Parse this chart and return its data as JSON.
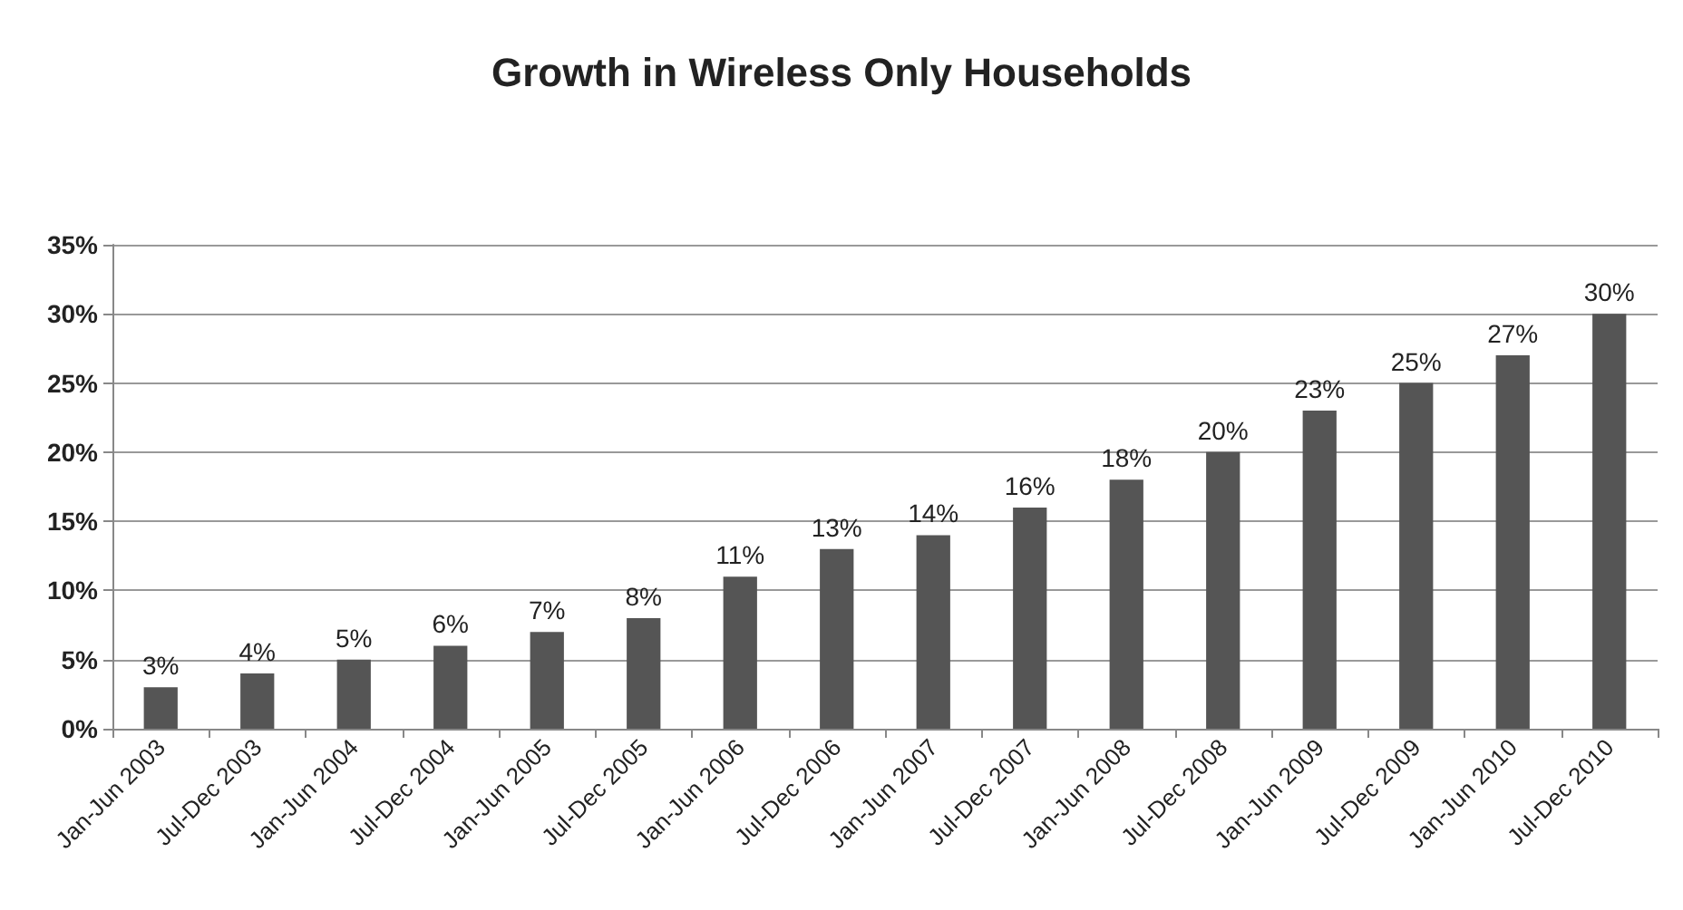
{
  "chart_data": {
    "type": "bar",
    "title": "Growth in Wireless Only Households",
    "categories": [
      "Jan-Jun 2003",
      "Jul-Dec 2003",
      "Jan-Jun 2004",
      "Jul-Dec 2004",
      "Jan-Jun 2005",
      "Jul-Dec 2005",
      "Jan-Jun 2006",
      "Jul-Dec 2006",
      "Jan-Jun 2007",
      "Jul-Dec 2007",
      "Jan-Jun 2008",
      "Jul-Dec 2008",
      "Jan-Jun 2009",
      "Jul-Dec 2009",
      "Jan-Jun 2010",
      "Jul-Dec 2010"
    ],
    "values": [
      3,
      4,
      5,
      6,
      7,
      8,
      11,
      13,
      14,
      16,
      18,
      20,
      23,
      25,
      27,
      30
    ],
    "value_labels": [
      "3%",
      "4%",
      "5%",
      "6%",
      "7%",
      "8%",
      "11%",
      "13%",
      "14%",
      "16%",
      "18%",
      "20%",
      "23%",
      "25%",
      "27%",
      "30%"
    ],
    "color": "#555555",
    "ylim": [
      0,
      35
    ],
    "yticks": [
      {
        "value": 0,
        "label": "0%"
      },
      {
        "value": 5,
        "label": "5%"
      },
      {
        "value": 10,
        "label": "10%"
      },
      {
        "value": 15,
        "label": "15%"
      },
      {
        "value": 20,
        "label": "20%"
      },
      {
        "value": 25,
        "label": "25%"
      },
      {
        "value": 30,
        "label": "30%"
      },
      {
        "value": 35,
        "label": "35%"
      }
    ],
    "grid": "y"
  }
}
